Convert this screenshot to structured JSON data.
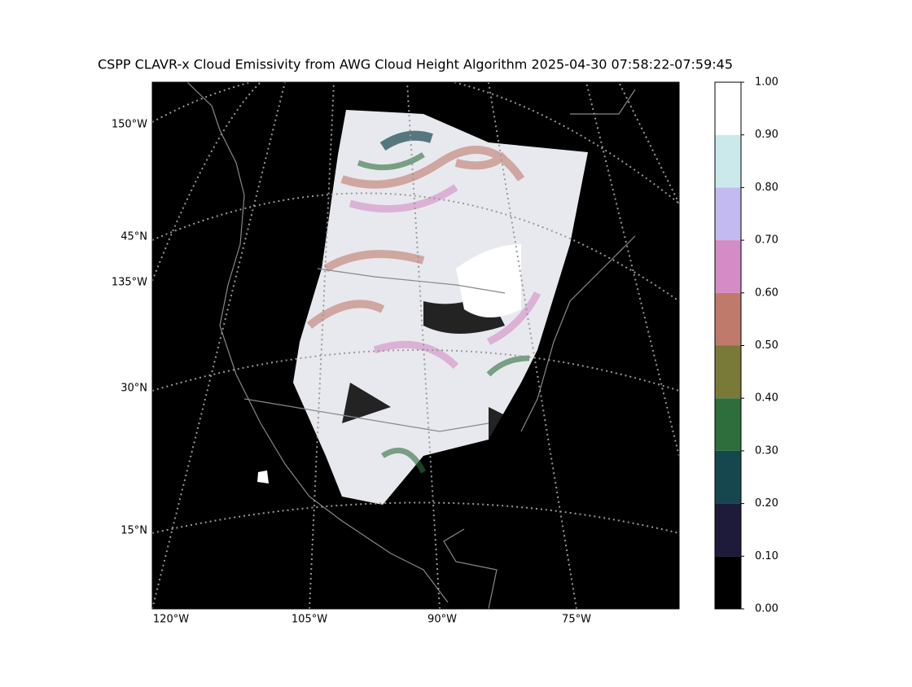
{
  "title": "CSPP CLAVR-x Cloud Emissivity from AWG Cloud Height Algorithm 2025-04-30 07:58:22-07:59:45",
  "map": {
    "left_labels": [
      "150°W",
      "45°N",
      "135°W",
      "30°N",
      "15°N"
    ],
    "bottom_labels": [
      "120°W",
      "105°W",
      "90°W",
      "75°W"
    ]
  },
  "colorbar": {
    "ticks": [
      {
        "value": 0,
        "label": "0.00"
      },
      {
        "value": 0.1,
        "label": "0.10"
      },
      {
        "value": 0.2,
        "label": "0.20"
      },
      {
        "value": 0.3,
        "label": "0.30"
      },
      {
        "value": 0.4,
        "label": "0.40"
      },
      {
        "value": 0.5,
        "label": "0.50"
      },
      {
        "value": 0.6,
        "label": "0.60"
      },
      {
        "value": 0.7,
        "label": "0.70"
      },
      {
        "value": 0.8,
        "label": "0.80"
      },
      {
        "value": 0.9,
        "label": "0.90"
      },
      {
        "value": 1,
        "label": "1.00"
      }
    ],
    "colors": [
      "#000000",
      "#1e1a3a",
      "#17474e",
      "#2d6e3c",
      "#7a7a38",
      "#c07a6c",
      "#d48cc6",
      "#c3baf0",
      "#cbe9ea",
      "#ffffff"
    ]
  }
}
